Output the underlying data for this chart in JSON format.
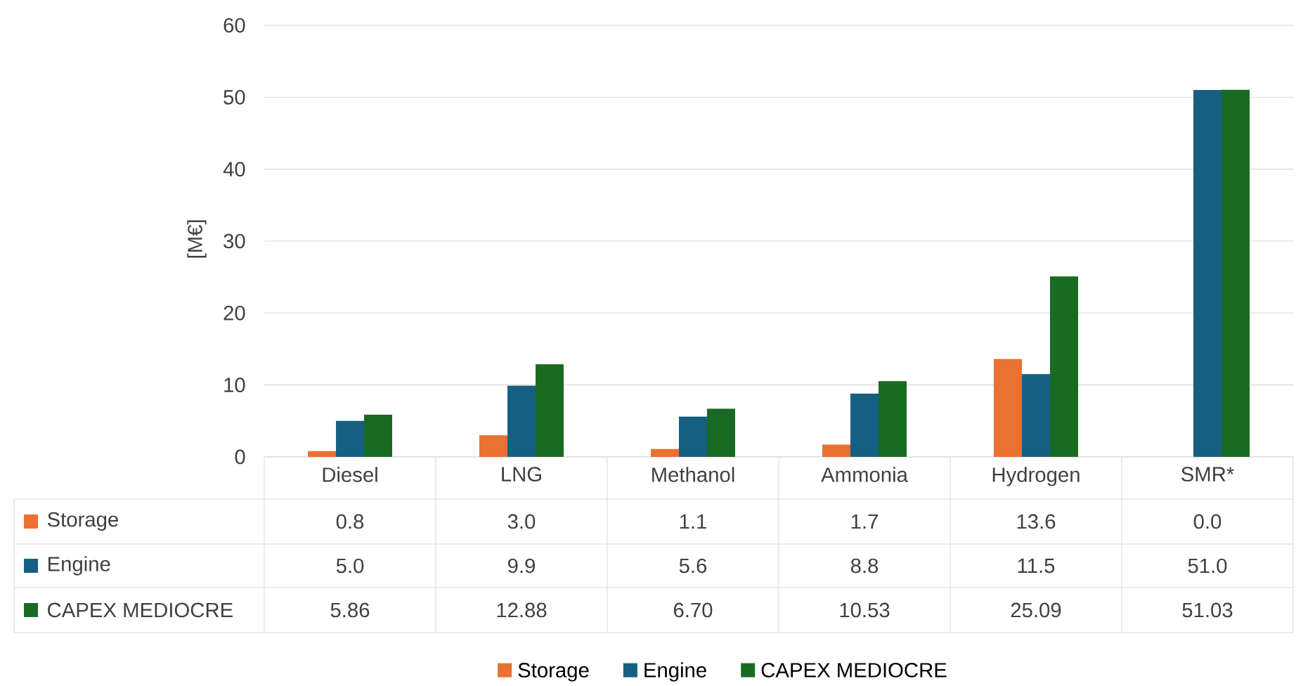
{
  "chart_data": {
    "type": "bar",
    "ylabel": "[M€]",
    "categories": [
      "Diesel",
      "LNG",
      "Methanol",
      "Ammonia",
      "Hydrogen",
      "SMR*"
    ],
    "series": [
      {
        "name": "Storage",
        "color": "#e97132",
        "values": [
          0.8,
          3.0,
          1.1,
          1.7,
          13.6,
          0.0
        ],
        "value_labels": [
          "0.8",
          "3.0",
          "1.1",
          "1.7",
          "13.6",
          "0.0"
        ]
      },
      {
        "name": "Engine",
        "color": "#156082",
        "values": [
          5.0,
          9.9,
          5.6,
          8.8,
          11.5,
          51.0
        ],
        "value_labels": [
          "5.0",
          "9.9",
          "5.6",
          "8.8",
          "11.5",
          "51.0"
        ]
      },
      {
        "name": "CAPEX MEDIOCRE",
        "color": "#196b24",
        "values": [
          5.86,
          12.88,
          6.7,
          10.53,
          25.09,
          51.03
        ],
        "value_labels": [
          "5.86",
          "12.88",
          "6.70",
          "10.53",
          "25.09",
          "51.03"
        ]
      }
    ],
    "ylim": [
      0,
      60
    ],
    "yticks": [
      0,
      10,
      20,
      30,
      40,
      50,
      60
    ],
    "grid": "y",
    "legend": "bottom"
  }
}
